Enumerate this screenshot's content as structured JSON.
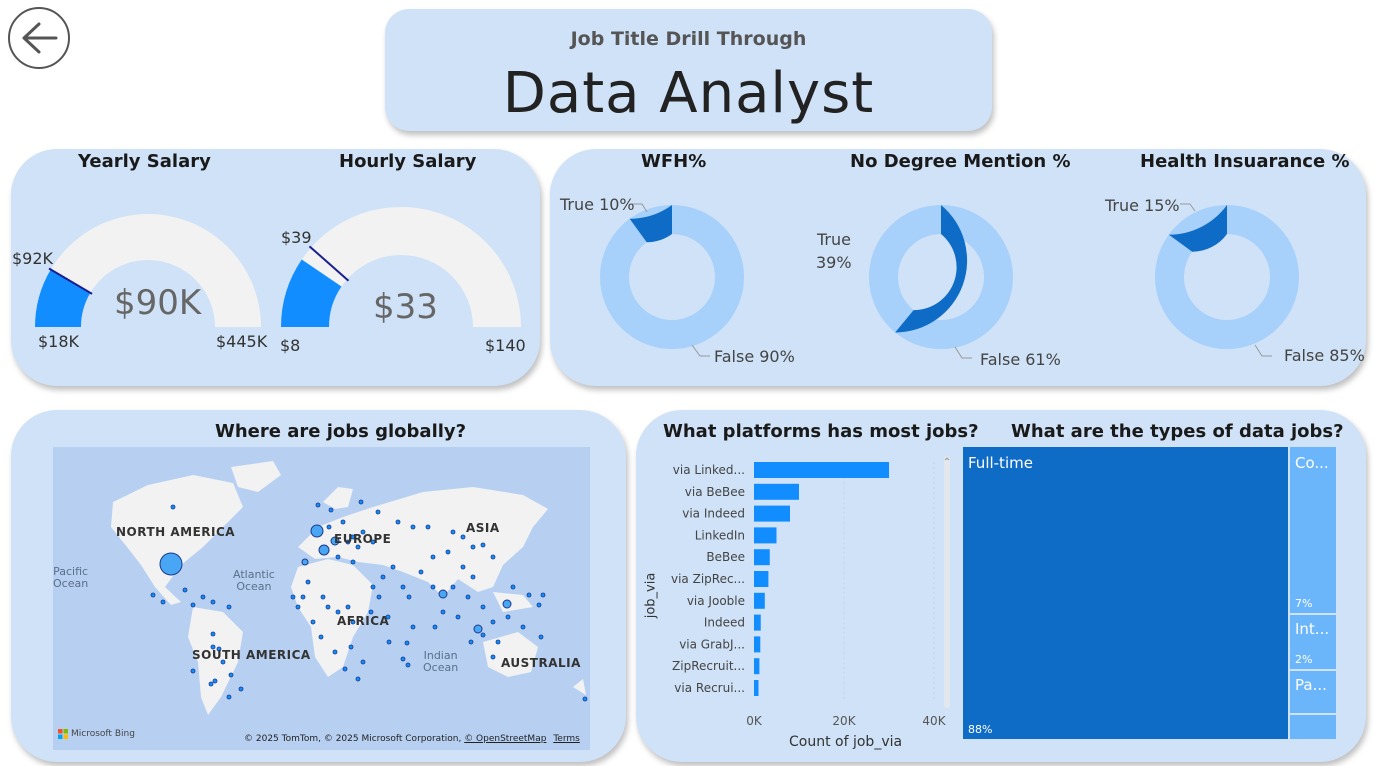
{
  "header": {
    "subtitle": "Job Title Drill Through",
    "title": "Data Analyst"
  },
  "salary": {
    "yearly": {
      "title": "Yearly Salary",
      "value": "$90K",
      "min": "$18K",
      "max": "$445K",
      "target": "$92K",
      "fraction": 0.17,
      "target_fraction": 0.17
    },
    "hourly": {
      "title": "Hourly Salary",
      "value": "$33",
      "min": "$8",
      "max": "$140",
      "target": "$39",
      "fraction": 0.19,
      "target_fraction": 0.23
    }
  },
  "donuts": [
    {
      "title": "WFH%",
      "true_label": "True 10%",
      "false_label": "False 90%",
      "true_pct": 10
    },
    {
      "title": "No Degree Mention %",
      "true_label_1": "True",
      "true_label_2": "39%",
      "false_label": "False 61%",
      "true_pct": 39
    },
    {
      "title": "Health Insuarance %",
      "true_label": "True 15%",
      "false_label": "False 85%",
      "true_pct": 15
    }
  ],
  "map": {
    "title": "Where are jobs globally?",
    "labels": {
      "north_america": "NORTH AMERICA",
      "europe": "EUROPE",
      "asia": "ASIA",
      "africa": "AFRICA",
      "south_america": "SOUTH AMERICA",
      "australia": "AUSTRALIA",
      "pacific_1": "Pacific",
      "pacific_2": "Ocean",
      "atlantic_1": "Atlantic",
      "atlantic_2": "Ocean",
      "indian_1": "Indian",
      "indian_2": "Ocean"
    },
    "bing": "Microsoft Bing",
    "attribution": "© 2025 TomTom, © 2025 Microsoft Corporation,",
    "osm": "© OpenStreetMap",
    "terms": "Terms"
  },
  "platforms": {
    "title": "What platforms has most jobs?",
    "ylabel": "job_via",
    "xlabel": "Count of job_via",
    "ticks": [
      "0K",
      "20K",
      "40K"
    ]
  },
  "chart_data": {
    "type": "bar",
    "orientation": "horizontal",
    "categories": [
      "via Linked...",
      "via BeBee",
      "via Indeed",
      "LinkedIn",
      "BeBee",
      "via ZipRec...",
      "via Jooble",
      "Indeed",
      "via GrabJ...",
      "ZipRecruit...",
      "via Recrui..."
    ],
    "values": [
      30000,
      10000,
      8000,
      5000,
      3500,
      3200,
      2400,
      1500,
      1400,
      1200,
      1000
    ],
    "xlabel": "Count of job_via",
    "ylabel": "job_via",
    "xlim": [
      0,
      40000
    ]
  },
  "job_types": {
    "title": "What are the types of data jobs?",
    "items": [
      {
        "label": "Full-time",
        "pct": "88%"
      },
      {
        "label": "Co...",
        "pct": "7%"
      },
      {
        "label": "Int...",
        "pct": "2%"
      },
      {
        "label": "Pa...",
        "pct": ""
      }
    ]
  },
  "colors": {
    "panel": "#cfe2f7",
    "accent_blue": "#118dff",
    "dark_blue": "#0f6cc6",
    "light_blue": "#a7d0fb",
    "gauge_track": "#f2f2f2"
  }
}
